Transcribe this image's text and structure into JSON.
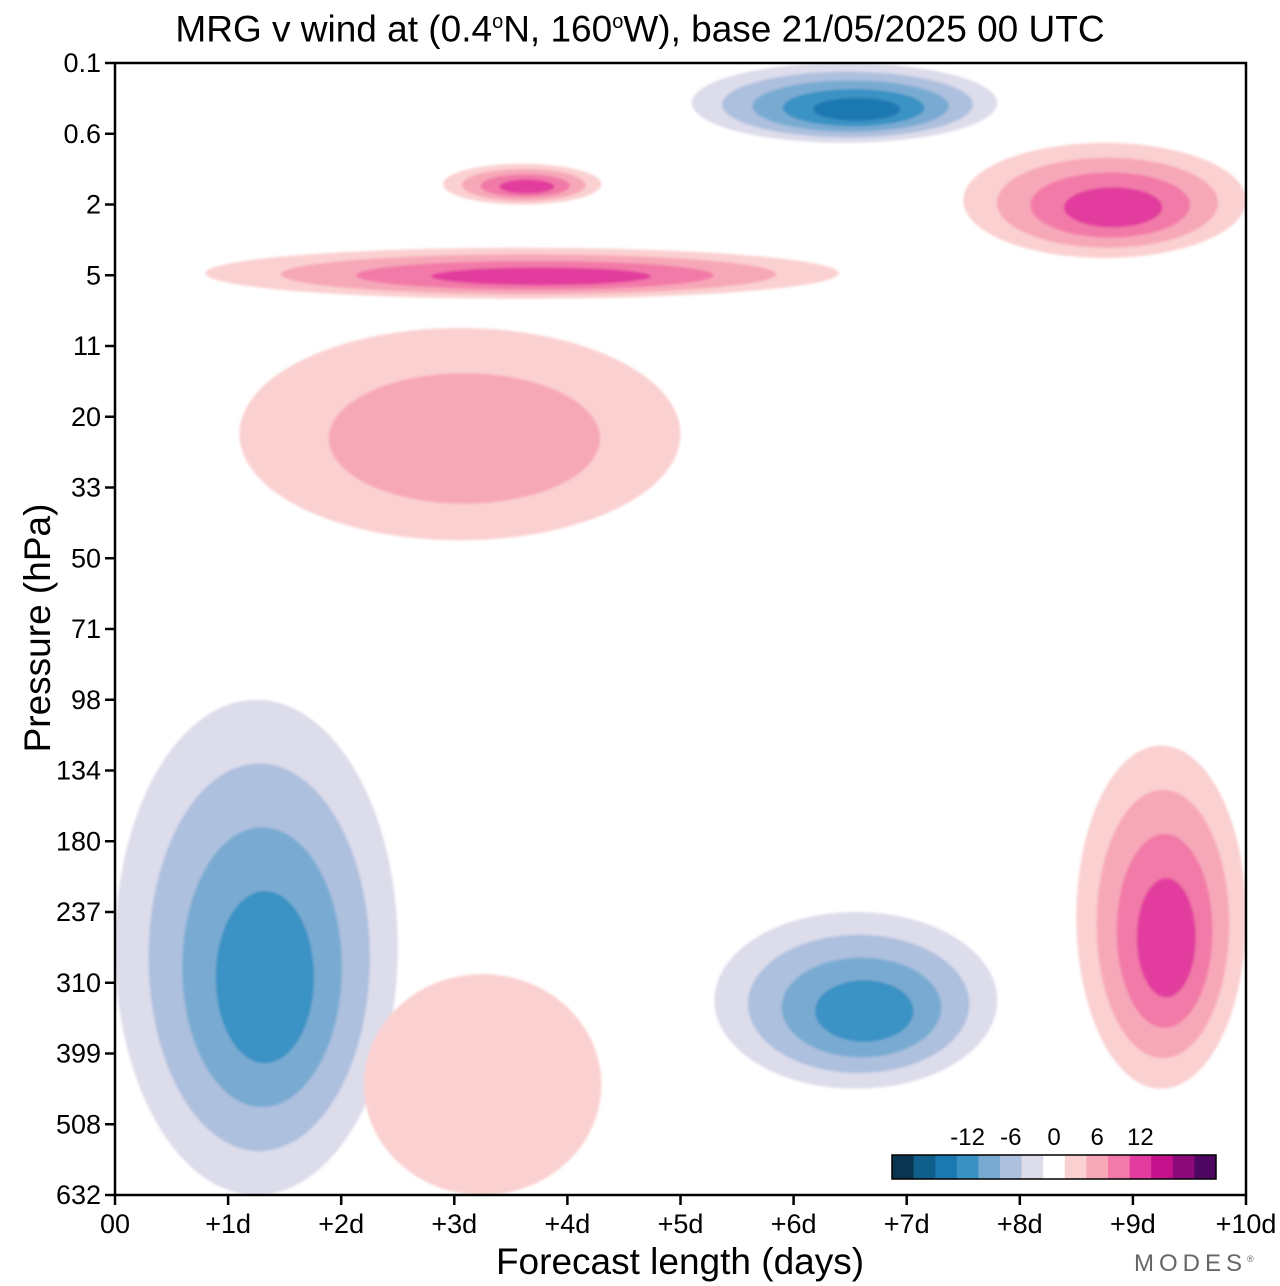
{
  "chart_data": {
    "type": "heatmap",
    "title": "MRG v wind at (0.4",
    "title_lat_deg": "o",
    "title_mid": "N, 160",
    "title_lon_deg": "o",
    "title_end": "W),  base 21/05/2025  00 UTC",
    "xlabel": "Forecast length (days)",
    "ylabel": "Pressure (hPa)",
    "x_ticks": [
      "00",
      "+1d",
      "+2d",
      "+3d",
      "+4d",
      "+5d",
      "+6d",
      "+7d",
      "+8d",
      "+9d",
      "+10d"
    ],
    "x_range_days": [
      0,
      10
    ],
    "y_ticks": [
      "0.1",
      "0.6",
      "2",
      "5",
      "11",
      "20",
      "33",
      "50",
      "71",
      "98",
      "134",
      "180",
      "237",
      "310",
      "399",
      "508",
      "632"
    ],
    "y_scale": "log-pressure",
    "y_range_hPa": [
      0.1,
      632
    ],
    "colorbar": {
      "ticks": [
        "-12",
        "-6",
        "0",
        "6",
        "12"
      ],
      "levels": [
        -15,
        -12,
        -9,
        -6,
        -3,
        0,
        3,
        6,
        9,
        12,
        15
      ],
      "colors": [
        "#0a3550",
        "#0f5f8a",
        "#1b78b0",
        "#3a92c4",
        "#79abd2",
        "#adc0de",
        "#dcdceb",
        "#ffffff",
        "#fbd0d0",
        "#f7a8b8",
        "#f27aa8",
        "#e23d9e",
        "#c4108a",
        "#8a0a7a",
        "#4d0760"
      ],
      "position": "bottom-right"
    },
    "features": [
      {
        "kind": "negative",
        "x": [
          0.0,
          2.5
        ],
        "y_hPa": [
          98,
          632
        ],
        "min_value": -12
      },
      {
        "kind": "negative",
        "x": [
          5.3,
          7.8
        ],
        "y_hPa": [
          237,
          450
        ],
        "min_value": -12
      },
      {
        "kind": "positive",
        "x": [
          8.5,
          10.0
        ],
        "y_hPa": [
          120,
          450
        ],
        "max_value": 12
      },
      {
        "kind": "negative",
        "x": [
          5.1,
          7.8
        ],
        "y_hPa": [
          0.1,
          0.7
        ],
        "min_value": -15
      },
      {
        "kind": "positive",
        "x": [
          0.8,
          6.4
        ],
        "y_hPa": [
          3.5,
          6.5
        ],
        "max_value": 12
      },
      {
        "kind": "positive",
        "x": [
          2.9,
          4.3
        ],
        "y_hPa": [
          1.0,
          2.0
        ],
        "max_value": 12
      },
      {
        "kind": "positive",
        "x": [
          7.5,
          10.0
        ],
        "y_hPa": [
          0.7,
          4.0
        ],
        "max_value": 12
      },
      {
        "kind": "positive",
        "x": [
          1.1,
          5.0
        ],
        "y_hPa": [
          9.0,
          45.0
        ],
        "max_value": 6
      },
      {
        "kind": "positive",
        "x": [
          2.2,
          4.3
        ],
        "y_hPa": [
          300,
          632
        ],
        "max_value": 3
      }
    ]
  },
  "watermark": "MODES",
  "watermark_mark": "®"
}
